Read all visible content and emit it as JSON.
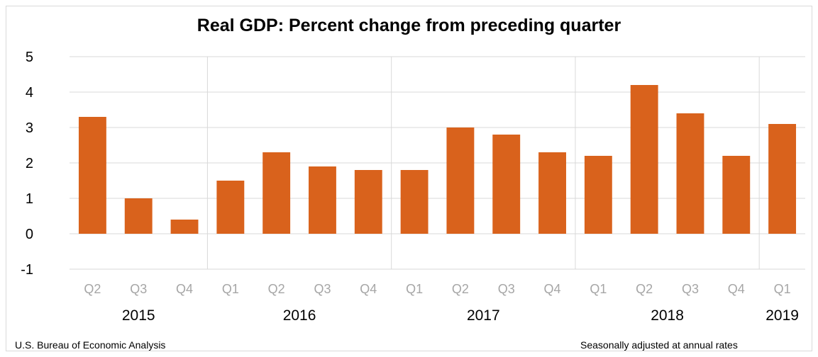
{
  "chart_data": {
    "type": "bar",
    "title": "Real GDP:  Percent change from preceding quarter",
    "xlabel": "",
    "ylabel": "",
    "ylim": [
      -1,
      5
    ],
    "yticks": [
      "-1",
      "0",
      "1",
      "2",
      "3",
      "4",
      "5"
    ],
    "categories": [
      "Q2",
      "Q3",
      "Q4",
      "Q1",
      "Q2",
      "Q3",
      "Q4",
      "Q1",
      "Q2",
      "Q3",
      "Q4",
      "Q1",
      "Q2",
      "Q3",
      "Q4",
      "Q1"
    ],
    "values": [
      3.3,
      1.0,
      0.4,
      1.5,
      2.3,
      1.9,
      1.8,
      1.8,
      3.0,
      2.8,
      2.3,
      2.2,
      4.2,
      3.4,
      2.2,
      3.1
    ],
    "years": [
      {
        "label": "2015",
        "start": 0,
        "count": 3
      },
      {
        "label": "2016",
        "start": 3,
        "count": 4
      },
      {
        "label": "2017",
        "start": 7,
        "count": 4
      },
      {
        "label": "2018",
        "start": 11,
        "count": 4
      },
      {
        "label": "2019",
        "start": 15,
        "count": 1
      }
    ],
    "bar_color": "#d9621c",
    "grid": true
  },
  "footer": {
    "source": "U.S. Bureau of Economic Analysis",
    "note": "Seasonally adjusted at annual rates"
  }
}
